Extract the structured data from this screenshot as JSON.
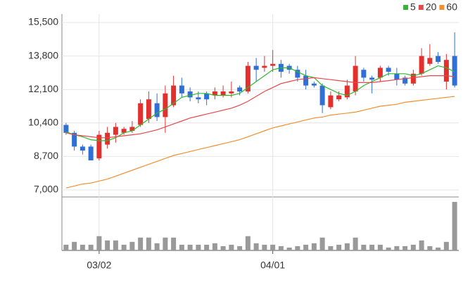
{
  "chart_data": {
    "type": "candlestick",
    "categories": [
      null,
      null,
      null,
      null,
      "03/02",
      null,
      null,
      null,
      null,
      null,
      null,
      null,
      null,
      null,
      null,
      null,
      null,
      null,
      null,
      null,
      null,
      null,
      null,
      null,
      null,
      "04/01",
      null,
      null,
      null,
      null,
      null,
      null,
      null,
      null,
      null,
      null,
      null,
      null,
      null,
      null,
      null,
      null,
      null,
      null,
      null,
      null,
      null,
      null
    ],
    "open": [
      10300,
      9900,
      9200,
      9200,
      8600,
      9300,
      9800,
      9900,
      10000,
      10300,
      10600,
      11400,
      10700,
      11300,
      12300,
      12000,
      11700,
      11900,
      11800,
      11800,
      11900,
      12200,
      12000,
      13300,
      13200,
      13300,
      13400,
      13300,
      13100,
      12800,
      12400,
      12300,
      11200,
      11600,
      11700,
      12000,
      13100,
      12700,
      12700,
      13200,
      12900,
      12700,
      12400,
      12900,
      13400,
      13800,
      12500,
      13800
    ],
    "high": [
      10400,
      10000,
      9300,
      9300,
      10000,
      10200,
      10400,
      10200,
      10500,
      11600,
      12000,
      11900,
      12300,
      12800,
      12700,
      12200,
      12000,
      12000,
      12200,
      12300,
      12500,
      12300,
      13500,
      13700,
      13800,
      14100,
      13600,
      13400,
      13300,
      13100,
      12500,
      12400,
      12000,
      12000,
      12600,
      13800,
      13200,
      12800,
      13300,
      13300,
      13200,
      12800,
      13100,
      14200,
      14400,
      14000,
      13900,
      15000
    ],
    "low": [
      9800,
      9000,
      8800,
      8500,
      8500,
      9100,
      9400,
      9800,
      9900,
      10200,
      10400,
      10500,
      9900,
      11200,
      11700,
      11500,
      11400,
      11300,
      11600,
      11700,
      11700,
      11800,
      11900,
      12500,
      13000,
      13000,
      12700,
      12900,
      12500,
      12100,
      12200,
      10900,
      11100,
      11500,
      11600,
      11800,
      12500,
      11900,
      12500,
      12800,
      12300,
      12300,
      12300,
      12800,
      13300,
      13400,
      12100,
      12200
    ],
    "close": [
      9900,
      9200,
      9000,
      8500,
      9800,
      9900,
      10200,
      10100,
      10200,
      11400,
      11600,
      10700,
      11900,
      12300,
      11900,
      11700,
      11600,
      11600,
      12000,
      12000,
      12000,
      12000,
      13300,
      13100,
      13300,
      13400,
      13000,
      13100,
      12700,
      12300,
      12300,
      11300,
      11800,
      11800,
      12300,
      13300,
      12700,
      12600,
      13200,
      13000,
      12600,
      12400,
      12900,
      13800,
      13700,
      13500,
      13600,
      12300
    ],
    "up_color": "#e2302f",
    "down_color": "#2f6fd6",
    "ma": [
      {
        "name": "5",
        "color": "#2db82d",
        "values": [
          9950,
          9800,
          9700,
          9550,
          9500,
          9500,
          9650,
          9900,
          10000,
          10300,
          10600,
          10900,
          11100,
          11400,
          11700,
          11800,
          11900,
          11900,
          11800,
          11800,
          11800,
          11900,
          12200,
          12500,
          12800,
          13100,
          13200,
          13200,
          13000,
          12800,
          12700,
          12300,
          12100,
          11900,
          11800,
          12000,
          12300,
          12500,
          12700,
          12900,
          12900,
          12900,
          12800,
          12900,
          13100,
          13300,
          13200,
          13000
        ]
      },
      {
        "name": "20",
        "color": "#e8474a",
        "values": [
          9900,
          9800,
          9750,
          9700,
          9650,
          9650,
          9700,
          9750,
          9800,
          9850,
          9950,
          10050,
          10200,
          10350,
          10500,
          10650,
          10750,
          10850,
          10950,
          11050,
          11150,
          11300,
          11500,
          11750,
          12000,
          12200,
          12400,
          12500,
          12600,
          12650,
          12700,
          12650,
          12600,
          12550,
          12500,
          12450,
          12450,
          12450,
          12500,
          12550,
          12600,
          12650,
          12700,
          12750,
          12800,
          12800,
          12800,
          12750
        ]
      },
      {
        "name": "60",
        "color": "#f09030",
        "values": [
          7100,
          7200,
          7300,
          7350,
          7450,
          7550,
          7700,
          7850,
          8000,
          8150,
          8300,
          8450,
          8600,
          8750,
          8850,
          8950,
          9050,
          9150,
          9250,
          9350,
          9450,
          9550,
          9700,
          9850,
          10000,
          10150,
          10250,
          10350,
          10450,
          10550,
          10650,
          10700,
          10800,
          10850,
          10900,
          10950,
          11050,
          11150,
          11250,
          11300,
          11350,
          11450,
          11500,
          11550,
          11600,
          11650,
          11700,
          11750
        ]
      }
    ],
    "ylim": [
      7000,
      15500
    ],
    "yticks": [
      {
        "value": 7000,
        "label": "7,000"
      },
      {
        "value": 8700,
        "label": "8,700"
      },
      {
        "value": 10400,
        "label": "10,400"
      },
      {
        "value": 12100,
        "label": "12,100"
      },
      {
        "value": 13800,
        "label": "13,800"
      },
      {
        "value": 15500,
        "label": "15,500"
      }
    ],
    "grid": true,
    "volume": [
      8,
      12,
      8,
      8,
      20,
      14,
      14,
      8,
      12,
      18,
      18,
      10,
      18,
      18,
      8,
      8,
      8,
      8,
      10,
      6,
      8,
      6,
      20,
      10,
      8,
      8,
      6,
      4,
      6,
      8,
      10,
      18,
      6,
      8,
      10,
      18,
      8,
      8,
      8,
      4,
      6,
      6,
      8,
      14,
      6,
      4,
      12,
      68
    ],
    "volume_ylim": [
      0,
      70
    ],
    "volume_color": "#999999",
    "legend": "top-right"
  }
}
